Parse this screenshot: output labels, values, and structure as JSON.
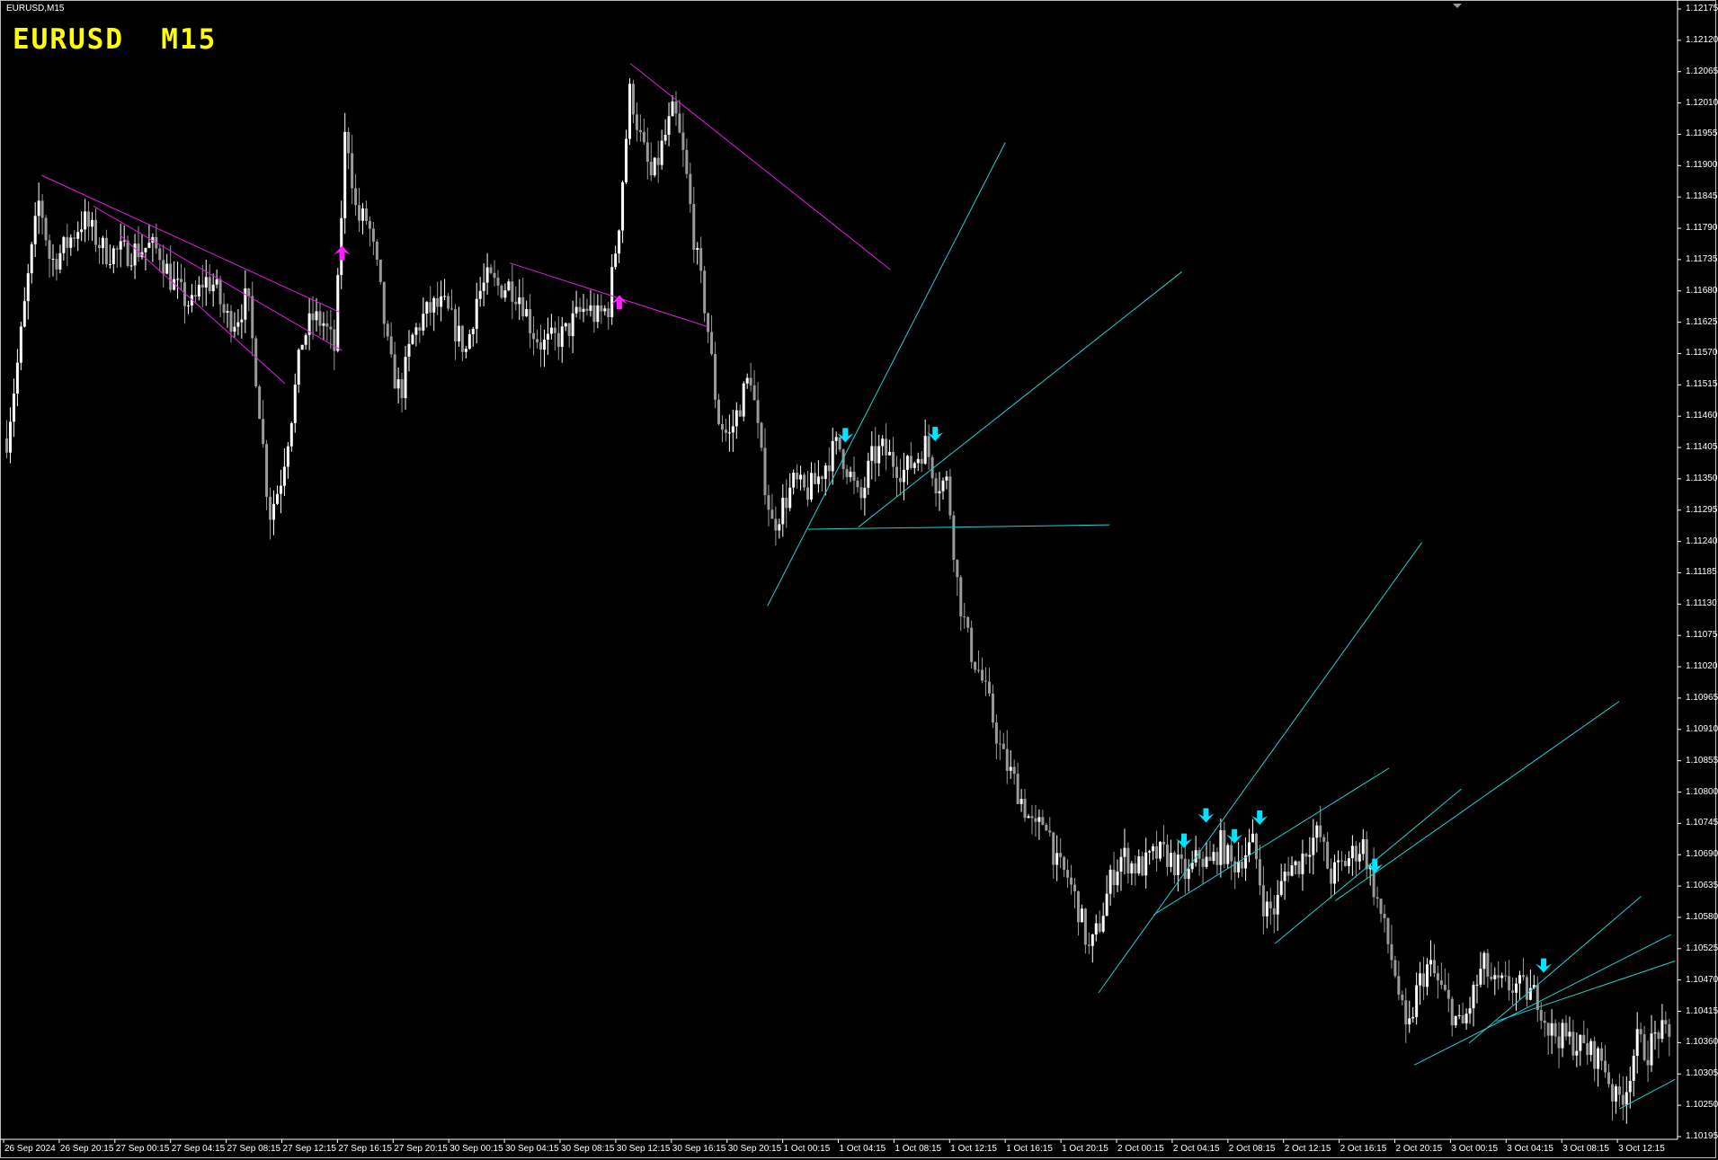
{
  "window": {
    "symbol_label": "EURUSD,M15",
    "chart_title": "EURUSD  M15"
  },
  "colors": {
    "background": "#000000",
    "axis": "#ffffff",
    "bull_candle": "#ffffff",
    "bear_candle": "#9a9a9a",
    "title": "#ffff00",
    "resistance_lines": "#e020e0",
    "support_lines": "#20d0d0",
    "buy_arrow": "#ff20ff",
    "sell_arrow": "#00e5ff"
  },
  "chart_data": {
    "type": "candlestick",
    "symbol": "EURUSD",
    "timeframe": "M15",
    "grid": false,
    "ylim": [
      1.10195,
      1.12175
    ],
    "y_ticks": [
      "1.12175",
      "1.12120",
      "1.12065",
      "1.12010",
      "1.11955",
      "1.11900",
      "1.11845",
      "1.11790",
      "1.11735",
      "1.11680",
      "1.11625",
      "1.11570",
      "1.11515",
      "1.11460",
      "1.11405",
      "1.11350",
      "1.11295",
      "1.11240",
      "1.11185",
      "1.11130",
      "1.11075",
      "1.11020",
      "1.10965",
      "1.10910",
      "1.10855",
      "1.10800",
      "1.10745",
      "1.10690",
      "1.10635",
      "1.10580",
      "1.10525",
      "1.10470",
      "1.10415",
      "1.10360",
      "1.10305",
      "1.10250",
      "1.10195"
    ],
    "x_ticks": [
      "26 Sep 2024",
      "26 Sep 20:15",
      "27 Sep 00:15",
      "27 Sep 04:15",
      "27 Sep 08:15",
      "27 Sep 12:15",
      "27 Sep 16:15",
      "27 Sep 20:15",
      "30 Sep 00:15",
      "30 Sep 04:15",
      "30 Sep 08:15",
      "30 Sep 12:15",
      "30 Sep 16:15",
      "30 Sep 20:15",
      "1 Oct 00:15",
      "1 Oct 04:15",
      "1 Oct 08:15",
      "1 Oct 12:15",
      "1 Oct 16:15",
      "1 Oct 20:15",
      "2 Oct 00:15",
      "2 Oct 04:15",
      "2 Oct 08:15",
      "2 Oct 12:15",
      "2 Oct 16:15",
      "2 Oct 20:15",
      "3 Oct 00:15",
      "3 Oct 04:15",
      "3 Oct 08:15",
      "3 Oct 12:15"
    ],
    "close_path": [
      1.11421,
      1.11555,
      1.11709,
      1.11844,
      1.11729,
      1.11748,
      1.11777,
      1.11806,
      1.11777,
      1.11748,
      1.11748,
      1.11748,
      1.11752,
      1.11758,
      1.11748,
      1.117,
      1.11671,
      1.11652,
      1.117,
      1.1169,
      1.11632,
      1.11632,
      1.11671,
      1.11498,
      1.11286,
      1.11344,
      1.11459,
      1.11594,
      1.11632,
      1.11623,
      1.11575,
      1.11979,
      1.11806,
      1.11806,
      1.117,
      1.11555,
      1.11498,
      1.11594,
      1.11632,
      1.11652,
      1.11652,
      1.11613,
      1.11575,
      1.11671,
      1.117,
      1.11686,
      1.1169,
      1.11671,
      1.11613,
      1.11584,
      1.11594,
      1.11604,
      1.11632,
      1.11652,
      1.11632,
      1.11652,
      1.11806,
      1.12036,
      1.1194,
      1.11873,
      1.1194,
      1.11998,
      1.11902,
      1.11748,
      1.11632,
      1.11459,
      1.11421,
      1.11479,
      1.11536,
      1.11382,
      1.11267,
      1.11305,
      1.11344,
      1.11325,
      1.11344,
      1.11382,
      1.11411,
      1.11363,
      1.11305,
      1.11382,
      1.11402,
      1.11382,
      1.11363,
      1.11382,
      1.11411,
      1.11344,
      1.11344,
      1.11151,
      1.11055,
      1.11007,
      1.1094,
      1.10863,
      1.10824,
      1.10776,
      1.10728,
      1.10757,
      1.1067,
      1.10651,
      1.10594,
      1.10517,
      1.10574,
      1.10651,
      1.1069,
      1.1067,
      1.1067,
      1.1069,
      1.1069,
      1.1067,
      1.10651,
      1.1069,
      1.1067,
      1.10709,
      1.1067,
      1.1069,
      1.10709,
      1.10594,
      1.10594,
      1.1067,
      1.1067,
      1.10709,
      1.10728,
      1.10651,
      1.1067,
      1.1069,
      1.10709,
      1.10632,
      1.10555,
      1.10478,
      1.10363,
      1.10459,
      1.10497,
      1.10459,
      1.1042,
      1.10382,
      1.1044,
      1.10497,
      1.10459,
      1.10459,
      1.10459,
      1.10449,
      1.1044,
      1.10382,
      1.10372,
      1.10363,
      1.10353,
      1.1034,
      1.10328,
      1.10257,
      1.10276,
      1.10363,
      1.10343,
      1.10382,
      1.10363
    ],
    "signals": {
      "buy_arrows": 2,
      "sell_arrows": 8
    }
  }
}
